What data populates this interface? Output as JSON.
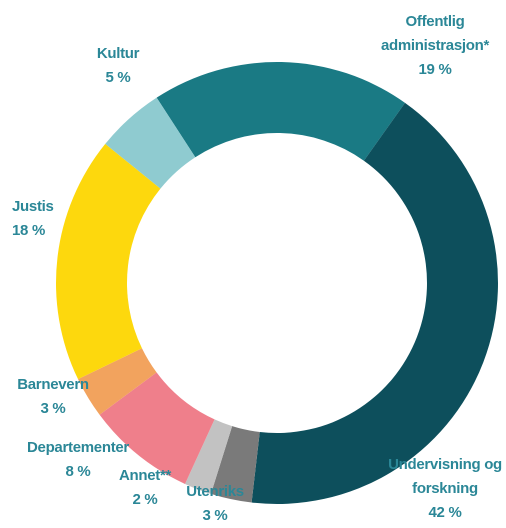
{
  "chart_data": {
    "type": "pie",
    "categories": [
      "Offentlig administrasjon*",
      "Undervisning og forskning",
      "Utenriks",
      "Annet**",
      "Departementer",
      "Barnevern",
      "Justis",
      "Kultur"
    ],
    "values": [
      19,
      42,
      3,
      2,
      8,
      3,
      18,
      5
    ],
    "value_labels": [
      "19 %",
      "42 %",
      "3 %",
      "2 %",
      "8 %",
      "3 %",
      "18 %",
      "5 %"
    ],
    "colors": [
      "#1a7a84",
      "#0d4f5c",
      "#7a7a7a",
      "#c2c2c2",
      "#ef7f8b",
      "#f2a35e",
      "#fdd80d",
      "#8fcbd0"
    ]
  }
}
